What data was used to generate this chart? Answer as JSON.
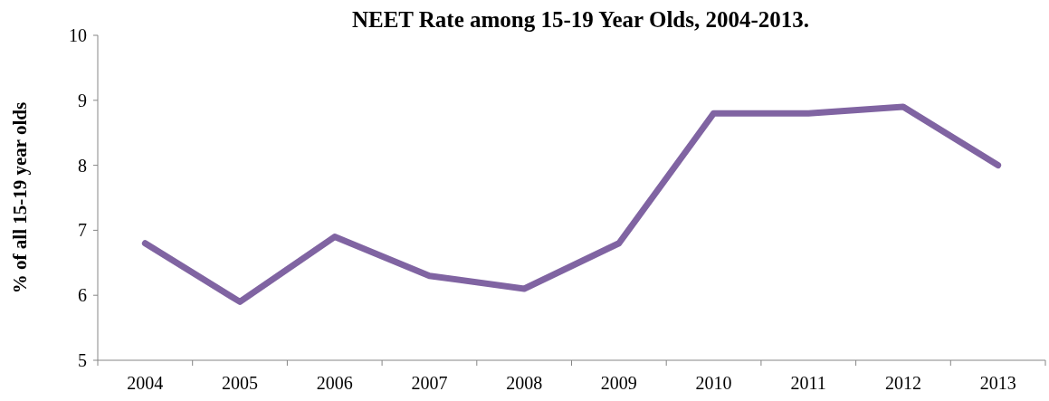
{
  "chart_data": {
    "type": "line",
    "title": "NEET Rate among 15-19 Year Olds, 2004-2013.",
    "ylabel": "% of all 15-19 year olds",
    "categories": [
      "2004",
      "2005",
      "2006",
      "2007",
      "2008",
      "2009",
      "2010",
      "2011",
      "2012",
      "2013"
    ],
    "series": [
      {
        "color": "#8064a2",
        "values": [
          6.8,
          5.9,
          6.9,
          6.3,
          6.1,
          6.8,
          8.8,
          8.8,
          8.9,
          8.0
        ]
      }
    ],
    "ylim": [
      5,
      10
    ],
    "yticks": [
      5,
      6,
      7,
      8,
      9,
      10
    ],
    "grid": false,
    "marker": "none",
    "line_style": "solid"
  }
}
